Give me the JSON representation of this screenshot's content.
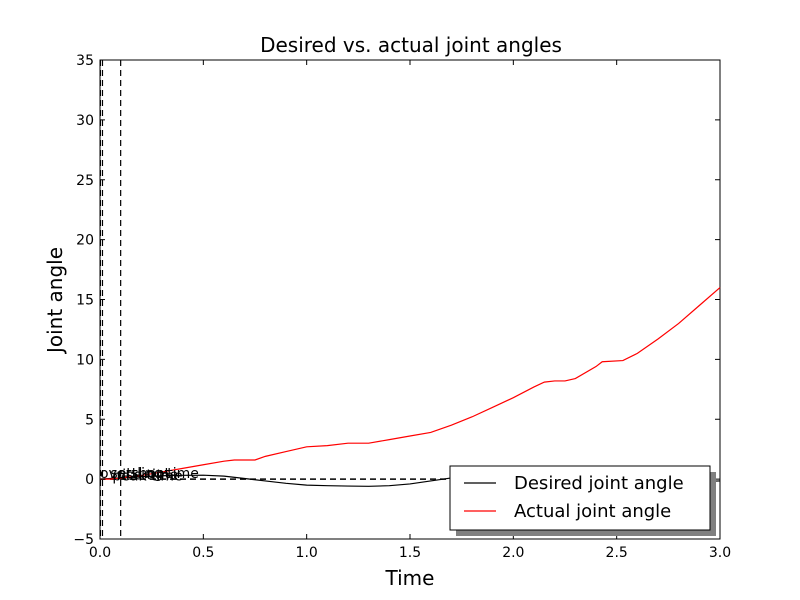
{
  "chart_data": {
    "type": "line",
    "title": "Desired vs. actual joint angles",
    "xlabel": "Time",
    "ylabel": "Joint angle",
    "xlim": [
      0,
      3.0
    ],
    "ylim": [
      -5,
      35
    ],
    "xticks": [
      0.0,
      0.5,
      1.0,
      1.5,
      2.0,
      2.5,
      3.0
    ],
    "xtick_labels": [
      "0.0",
      "0.5",
      "1.0",
      "1.5",
      "2.0",
      "2.5",
      "3.0"
    ],
    "yticks": [
      -5,
      0,
      5,
      10,
      15,
      20,
      25,
      30,
      35
    ],
    "ytick_labels": [
      "−5",
      "0",
      "5",
      "10",
      "15",
      "20",
      "25",
      "30",
      "35"
    ],
    "grid": false,
    "legend_position": "lower-right",
    "series": [
      {
        "name": "Desired joint angle",
        "color": "#000000",
        "x": [
          0.0,
          0.05,
          0.1,
          0.2,
          0.3,
          0.4,
          0.5,
          0.6,
          0.7,
          0.8,
          0.9,
          1.0,
          1.1,
          1.2,
          1.3,
          1.4,
          1.5,
          1.6,
          1.7,
          1.8,
          1.9,
          2.0,
          2.1,
          2.2,
          2.3,
          2.4,
          2.5,
          2.6,
          2.7,
          2.8,
          2.9,
          3.0
        ],
        "y": [
          0.0,
          0.05,
          0.1,
          0.2,
          0.28,
          0.32,
          0.33,
          0.25,
          0.05,
          -0.15,
          -0.35,
          -0.5,
          -0.55,
          -0.58,
          -0.6,
          -0.55,
          -0.4,
          -0.15,
          0.1,
          0.3,
          0.4,
          0.42,
          0.35,
          0.2,
          0.0,
          -0.15,
          -0.25,
          -0.3,
          -0.3,
          -0.25,
          -0.2,
          -0.15
        ]
      },
      {
        "name": "Actual joint angle",
        "color": "#ff0000",
        "x": [
          0.0,
          0.05,
          0.1,
          0.2,
          0.3,
          0.4,
          0.5,
          0.6,
          0.65,
          0.75,
          0.8,
          0.9,
          1.0,
          1.1,
          1.2,
          1.3,
          1.4,
          1.5,
          1.6,
          1.7,
          1.8,
          1.9,
          2.0,
          2.1,
          2.15,
          2.2,
          2.25,
          2.3,
          2.4,
          2.43,
          2.53,
          2.6,
          2.7,
          2.8,
          2.9,
          3.0
        ],
        "y": [
          0.0,
          0.0,
          0.1,
          0.3,
          0.6,
          0.9,
          1.2,
          1.5,
          1.6,
          1.6,
          1.9,
          2.3,
          2.7,
          2.8,
          3.0,
          3.0,
          3.3,
          3.6,
          3.9,
          4.5,
          5.2,
          6.0,
          6.8,
          7.7,
          8.1,
          8.2,
          8.2,
          8.4,
          9.4,
          9.8,
          9.9,
          10.5,
          11.7,
          13.0,
          14.5,
          16.0
        ]
      }
    ],
    "annotations": [
      {
        "kind": "hline",
        "y": 0.0,
        "style": "dashed",
        "color": "#000000",
        "x_end": 2.1
      },
      {
        "kind": "vline",
        "x": 0.002,
        "style": "dashed",
        "color": "#000000"
      },
      {
        "kind": "vline",
        "x": 0.012,
        "style": "dashed",
        "color": "#000000"
      },
      {
        "kind": "vline",
        "x": 0.1,
        "style": "dashed",
        "color": "#000000"
      },
      {
        "kind": "text",
        "x": 0.0,
        "y": 0.1,
        "label": "overshoot"
      },
      {
        "kind": "text",
        "x": 0.05,
        "y": 0.1,
        "label": "settling time"
      },
      {
        "kind": "text",
        "x": 0.06,
        "y": -0.1,
        "label": "peak time"
      },
      {
        "kind": "text",
        "x": 0.08,
        "y": -0.05,
        "label": "rise time"
      }
    ],
    "legend": [
      {
        "label": "Desired joint angle",
        "color": "#000000"
      },
      {
        "label": "Actual joint angle",
        "color": "#ff0000"
      }
    ]
  }
}
